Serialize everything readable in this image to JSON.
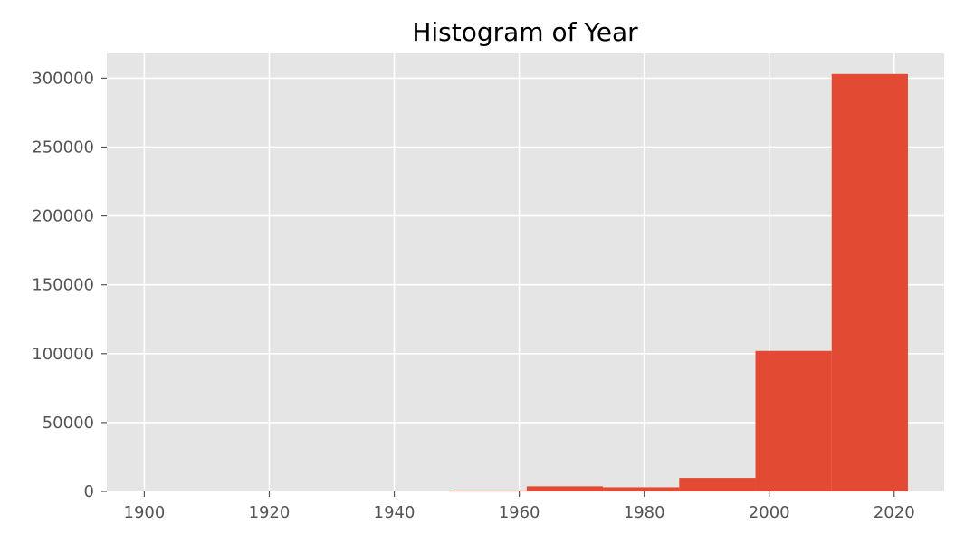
{
  "chart_data": {
    "type": "bar",
    "title": "Histogram of Year",
    "xlabel": "",
    "ylabel": "",
    "bins": [
      {
        "start": 1898.0,
        "end": 1910.4,
        "count": 0
      },
      {
        "start": 1910.4,
        "end": 1922.8,
        "count": 0
      },
      {
        "start": 1922.8,
        "end": 1935.2,
        "count": 0
      },
      {
        "start": 1935.2,
        "end": 1949.0,
        "count": 0
      },
      {
        "start": 1949.0,
        "end": 1961.2,
        "count": 700
      },
      {
        "start": 1961.2,
        "end": 1973.4,
        "count": 3700
      },
      {
        "start": 1973.4,
        "end": 1985.6,
        "count": 3000
      },
      {
        "start": 1985.6,
        "end": 1997.8,
        "count": 9800
      },
      {
        "start": 1997.8,
        "end": 2010.0,
        "count": 102000
      },
      {
        "start": 2010.0,
        "end": 2022.2,
        "count": 303000
      }
    ],
    "xlim": [
      1894,
      2028
    ],
    "ylim": [
      0,
      318000
    ],
    "x_ticks": [
      "1900",
      "1920",
      "1940",
      "1960",
      "1980",
      "2000",
      "2020"
    ],
    "y_ticks": [
      "0",
      "50000",
      "100000",
      "150000",
      "200000",
      "250000",
      "300000"
    ],
    "grid": true,
    "colors": {
      "bar": "#E24A33",
      "background": "#E5E5E5",
      "grid": "#FFFFFF",
      "tick_label": "#555555",
      "title": "#000000"
    }
  }
}
